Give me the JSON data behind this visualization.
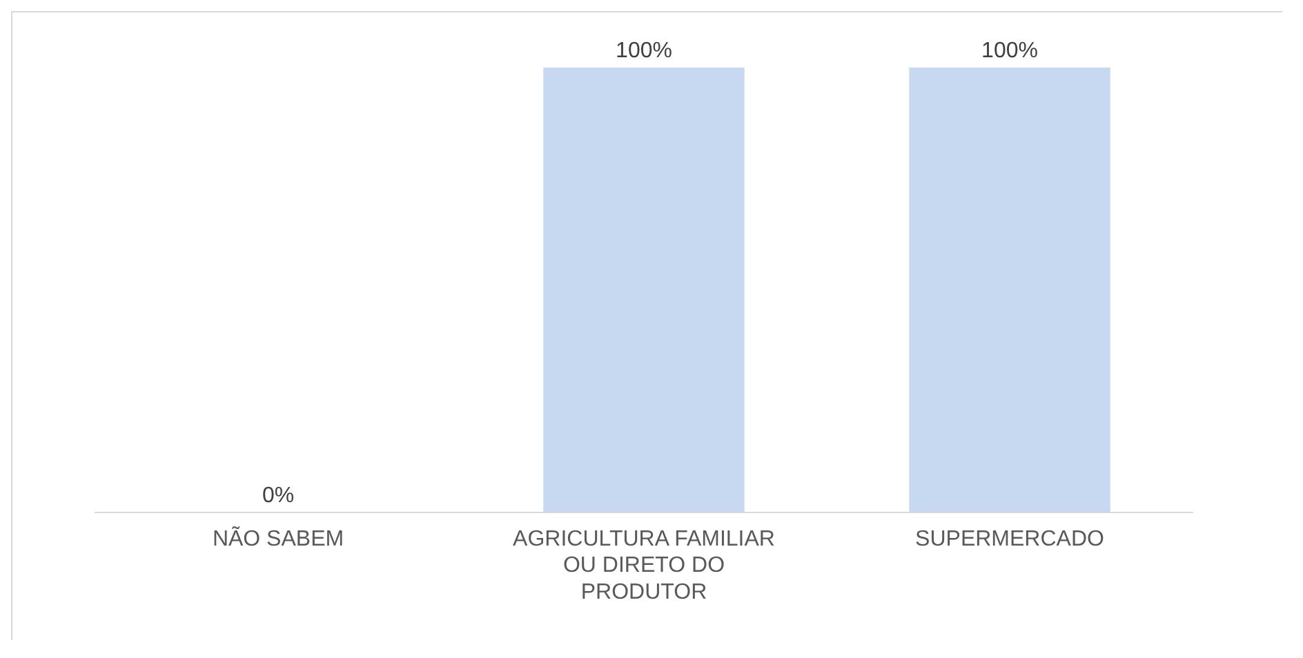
{
  "chart_data": {
    "type": "bar",
    "categories": [
      "NÃO SABEM",
      "AGRICULTURA FAMILIAR OU DIRETO DO PRODUTOR",
      "SUPERMERCADO"
    ],
    "values": [
      0,
      100,
      100
    ],
    "value_labels": [
      "0%",
      "100%",
      "100%"
    ],
    "color": "#c6d9f1",
    "ylim": [
      0,
      100
    ],
    "tick_labels": "x",
    "grid": false,
    "legend": false
  }
}
